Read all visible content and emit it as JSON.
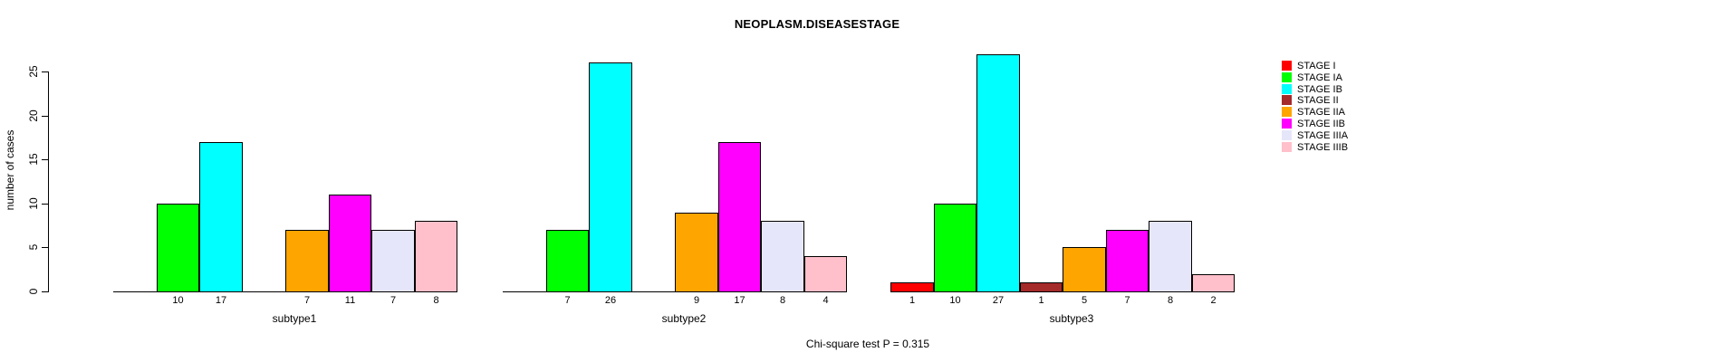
{
  "chart_data": {
    "type": "bar",
    "title": "NEOPLASM.DISEASESTAGE",
    "ylabel": "number of cases",
    "footnote": "Chi-square test P = 0.315",
    "grid": false,
    "legend_position": "right",
    "ylim": [
      0,
      27
    ],
    "yticks": [
      0,
      5,
      10,
      15,
      20,
      25
    ],
    "series": [
      {
        "name": "STAGE I",
        "color": "#FF0000"
      },
      {
        "name": "STAGE IA",
        "color": "#00FF00"
      },
      {
        "name": "STAGE IB",
        "color": "#00FFFF"
      },
      {
        "name": "STAGE II",
        "color": "#A52A2A"
      },
      {
        "name": "STAGE IIA",
        "color": "#FFA500"
      },
      {
        "name": "STAGE IIB",
        "color": "#FF00FF"
      },
      {
        "name": "STAGE IIIA",
        "color": "#E6E6FA"
      },
      {
        "name": "STAGE IIIB",
        "color": "#FFC0CB"
      }
    ],
    "categories": [
      "subtype1",
      "subtype2",
      "subtype3"
    ],
    "groups": [
      {
        "name": "subtype1",
        "values": [
          0,
          10,
          17,
          0,
          7,
          11,
          7,
          8
        ]
      },
      {
        "name": "subtype2",
        "values": [
          0,
          7,
          26,
          0,
          9,
          17,
          8,
          4
        ]
      },
      {
        "name": "subtype3",
        "values": [
          1,
          10,
          27,
          1,
          5,
          7,
          8,
          2
        ]
      }
    ],
    "bar_value_labels": "shown under each bar with value > 0"
  }
}
